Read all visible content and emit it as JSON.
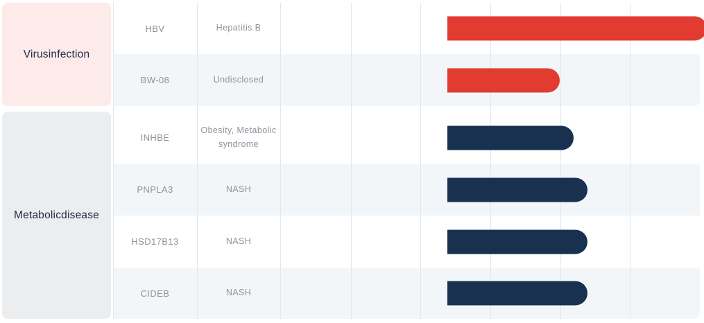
{
  "palette": {
    "red": "#e23b30",
    "navy": "#17314e",
    "pink-bg": "#fcebe9",
    "gray-bg": "#ecedef",
    "altrow-bg": "#f3f6f9",
    "white-row": "#ffffff",
    "gridline": "#e3e6ea",
    "cell-text": "#8d929a",
    "category-text": "#222b49"
  },
  "sections": [
    {
      "label": "Virusinfection",
      "rows": [
        {
          "name": "HBV",
          "indication": "Hepatitis B"
        },
        {
          "name": "BW-08",
          "indication": "Undisclosed"
        }
      ]
    },
    {
      "label": "Metabolicdisease",
      "rows": [
        {
          "name": "INHBE",
          "indication": "Obesity, Metabolic syndrome"
        },
        {
          "name": "PNPLA3",
          "indication": "NASH"
        },
        {
          "name": "HSD17B13",
          "indication": "NASH"
        },
        {
          "name": "CIDEB",
          "indication": "NASH"
        }
      ]
    }
  ],
  "chart_data": {
    "type": "bar",
    "orientation": "horizontal",
    "title": "",
    "xlabel": "",
    "ylabel": "",
    "categories": [
      "HBV",
      "BW-08",
      "INHBE",
      "PNPLA3",
      "HSD17B13",
      "CIDEB"
    ],
    "values": [
      3.7,
      1.6,
      1.8,
      2.0,
      2.0,
      2.0
    ],
    "series": [
      {
        "name": "Virusinfection",
        "color": "#e23b30",
        "categories": [
          "HBV",
          "BW-08"
        ],
        "values": [
          3.7,
          1.6
        ]
      },
      {
        "name": "Metabolicdisease",
        "color": "#17314e",
        "categories": [
          "INHBE",
          "PNPLA3",
          "HSD17B13",
          "CIDEB"
        ],
        "values": [
          1.8,
          2.0,
          2.0,
          2.0
        ]
      }
    ],
    "xlim": [
      0,
      6
    ],
    "grid": true,
    "gridline_interval": 1,
    "legend": "none",
    "note": "Horizontal pipeline progress bars on a 6-column stage grid; stage header labels are not visible in the screenshot"
  }
}
